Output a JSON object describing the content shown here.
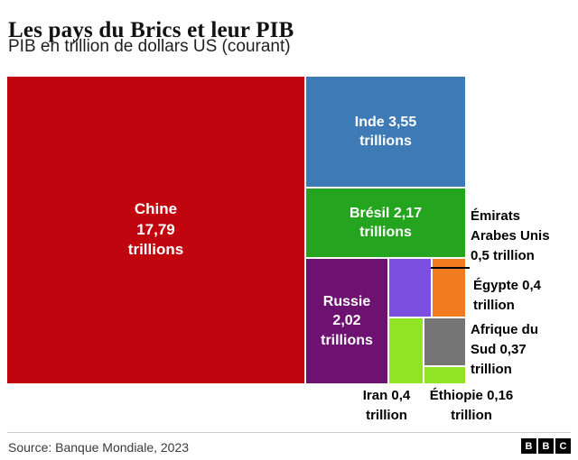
{
  "header": {
    "title": "Les pays du Brics et leur PIB",
    "subtitle": "PIB en trillion de dollars US (courant)"
  },
  "chart_data": {
    "type": "treemap",
    "title": "Les pays du Brics et leur PIB",
    "subtitle": "PIB en trillion de dollars US (courant)",
    "unit": "trillion de dollars US (courant)",
    "legend": "none",
    "items": [
      {
        "name": "Chine",
        "value": 17.79,
        "color": "#c1050e",
        "label_lines": [
          "Chine",
          "17,79",
          "trillions"
        ],
        "label_position": "inside"
      },
      {
        "name": "Inde",
        "value": 3.55,
        "color": "#3d7ab6",
        "label_lines": [
          "Inde 3,55",
          "trillions"
        ],
        "label_position": "inside"
      },
      {
        "name": "Brésil",
        "value": 2.17,
        "color": "#24a41f",
        "label_lines": [
          "Brésil 2,17",
          "trillions"
        ],
        "label_position": "inside"
      },
      {
        "name": "Russie",
        "value": 2.02,
        "color": "#6e1271",
        "label_lines": [
          "Russie",
          "2,02",
          "trillions"
        ],
        "label_position": "inside"
      },
      {
        "name": "Émirats Arabes Unis",
        "value": 0.5,
        "color": "#7b50e1",
        "label_lines": [
          "Émirats",
          "Arabes Unis",
          "0,5 trillion"
        ],
        "label_position": "right"
      },
      {
        "name": "Égypte",
        "value": 0.4,
        "color": "#f17c20",
        "label_lines": [
          "Égypte 0,4",
          "trillion"
        ],
        "label_position": "right"
      },
      {
        "name": "Afrique du Sud",
        "value": 0.37,
        "color": "#757575",
        "label_lines": [
          "Afrique du",
          "Sud 0,37",
          "trillion"
        ],
        "label_position": "right"
      },
      {
        "name": "Iran",
        "value": 0.4,
        "color": "#d0449b",
        "label_lines": [
          "Iran 0,4",
          "trillion"
        ],
        "label_position": "below"
      },
      {
        "name": "Éthiopie",
        "value": 0.16,
        "color": "#90e424",
        "label_lines": [
          "Éthiopie 0,16",
          "trillion"
        ],
        "label_position": "below"
      }
    ]
  },
  "footer": {
    "source": "Source: Banque Mondiale, 2023",
    "logo_letters": [
      "B",
      "B",
      "C"
    ]
  }
}
